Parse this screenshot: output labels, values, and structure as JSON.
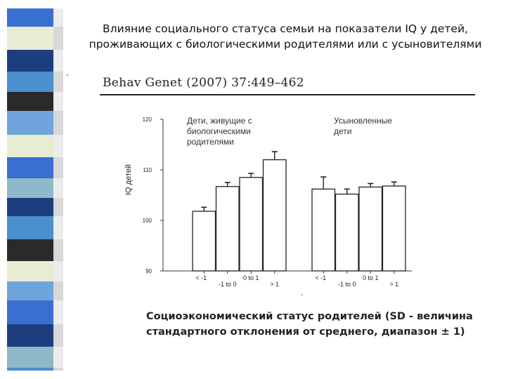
{
  "slide": {
    "title_lines": [
      "Влияние социального статуса семьи на показатели IQ у детей,",
      "проживающих с биологическими родителями или с усыновителями"
    ],
    "citation": "Behav Genet (2007) 37:449–462",
    "caption_lines": [
      "Социоэкономический статус  родителей (SD -  величина",
      "стандартного отклонения  от среднего, диапазон ± 1)"
    ],
    "stripe_colors": [
      "#3a6fd0",
      "#1c3d7e",
      "#4a8fce",
      "#e8ecd2",
      "#2a2a2a",
      "#6fa4dd",
      "#8fb8c8"
    ]
  },
  "chart_data": {
    "type": "bar",
    "title": "",
    "xlabel": "",
    "ylabel": "IQ детей",
    "ylim": [
      90,
      120
    ],
    "yticks": [
      90,
      100,
      110,
      120
    ],
    "grid": false,
    "legend": "none",
    "categories": [
      "< -1",
      "-1 to 0",
      "0 to 1",
      "> 1"
    ],
    "groups": [
      {
        "label": "Дети, живущие с биологическими родителями",
        "label_lines": [
          "Дети, живущие с",
          "биологическими",
          "родителями"
        ],
        "values": [
          101.8,
          106.7,
          108.5,
          112.0
        ],
        "errors": [
          0.8,
          0.8,
          0.8,
          1.6
        ]
      },
      {
        "label": "Усыновленные дети",
        "label_lines": [
          "Усыновленные",
          "дети"
        ],
        "values": [
          106.2,
          105.2,
          106.6,
          106.8
        ],
        "errors": [
          2.4,
          1.0,
          0.7,
          0.8
        ]
      }
    ],
    "bar_fill": "#ffffff",
    "bar_stroke": "#222222"
  }
}
